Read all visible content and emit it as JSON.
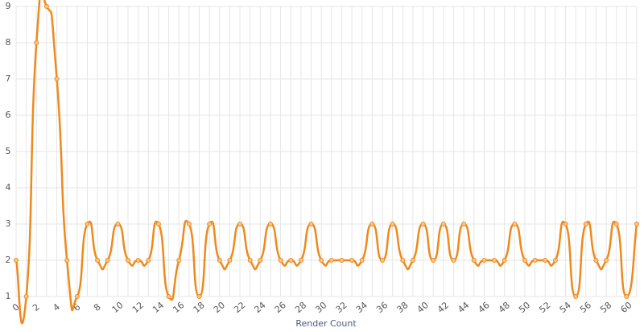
{
  "chart_data": {
    "type": "line",
    "x_label": "Render Count",
    "x": [
      0,
      1,
      2,
      3,
      4,
      5,
      6,
      7,
      8,
      9,
      10,
      11,
      12,
      13,
      14,
      15,
      16,
      17,
      18,
      19,
      20,
      21,
      22,
      23,
      24,
      25,
      26,
      27,
      28,
      29,
      30,
      31,
      32,
      33,
      34,
      35,
      36,
      37,
      38,
      39,
      40,
      41,
      42,
      43,
      44,
      45,
      46,
      47,
      48,
      49,
      50,
      51,
      52,
      53,
      54,
      55,
      56,
      57,
      58,
      59,
      60,
      61
    ],
    "series": [
      {
        "color": "#ee8a1c",
        "values": [
          2,
          1,
          8,
          9,
          7,
          2,
          1,
          3,
          2,
          2,
          3,
          2,
          2,
          2,
          3,
          1,
          2,
          3,
          1,
          3,
          2,
          2,
          3,
          2,
          2,
          3,
          2,
          2,
          2,
          3,
          2,
          2,
          2,
          2,
          2,
          3,
          2,
          3,
          2,
          2,
          3,
          2,
          3,
          2,
          3,
          2,
          2,
          2,
          2,
          3,
          2,
          2,
          2,
          2,
          3,
          1,
          3,
          2,
          2,
          3,
          1,
          3
        ]
      }
    ],
    "xlim": [
      0,
      61
    ],
    "xticks": [
      0,
      2,
      4,
      6,
      8,
      10,
      12,
      14,
      16,
      18,
      20,
      22,
      24,
      26,
      28,
      30,
      32,
      34,
      36,
      38,
      40,
      42,
      44,
      46,
      48,
      50,
      52,
      54,
      56,
      58,
      60
    ],
    "ylim": [
      1,
      9
    ],
    "yticks": [
      1,
      2,
      3,
      4,
      5,
      6,
      7,
      8,
      9
    ],
    "grid": true
  }
}
